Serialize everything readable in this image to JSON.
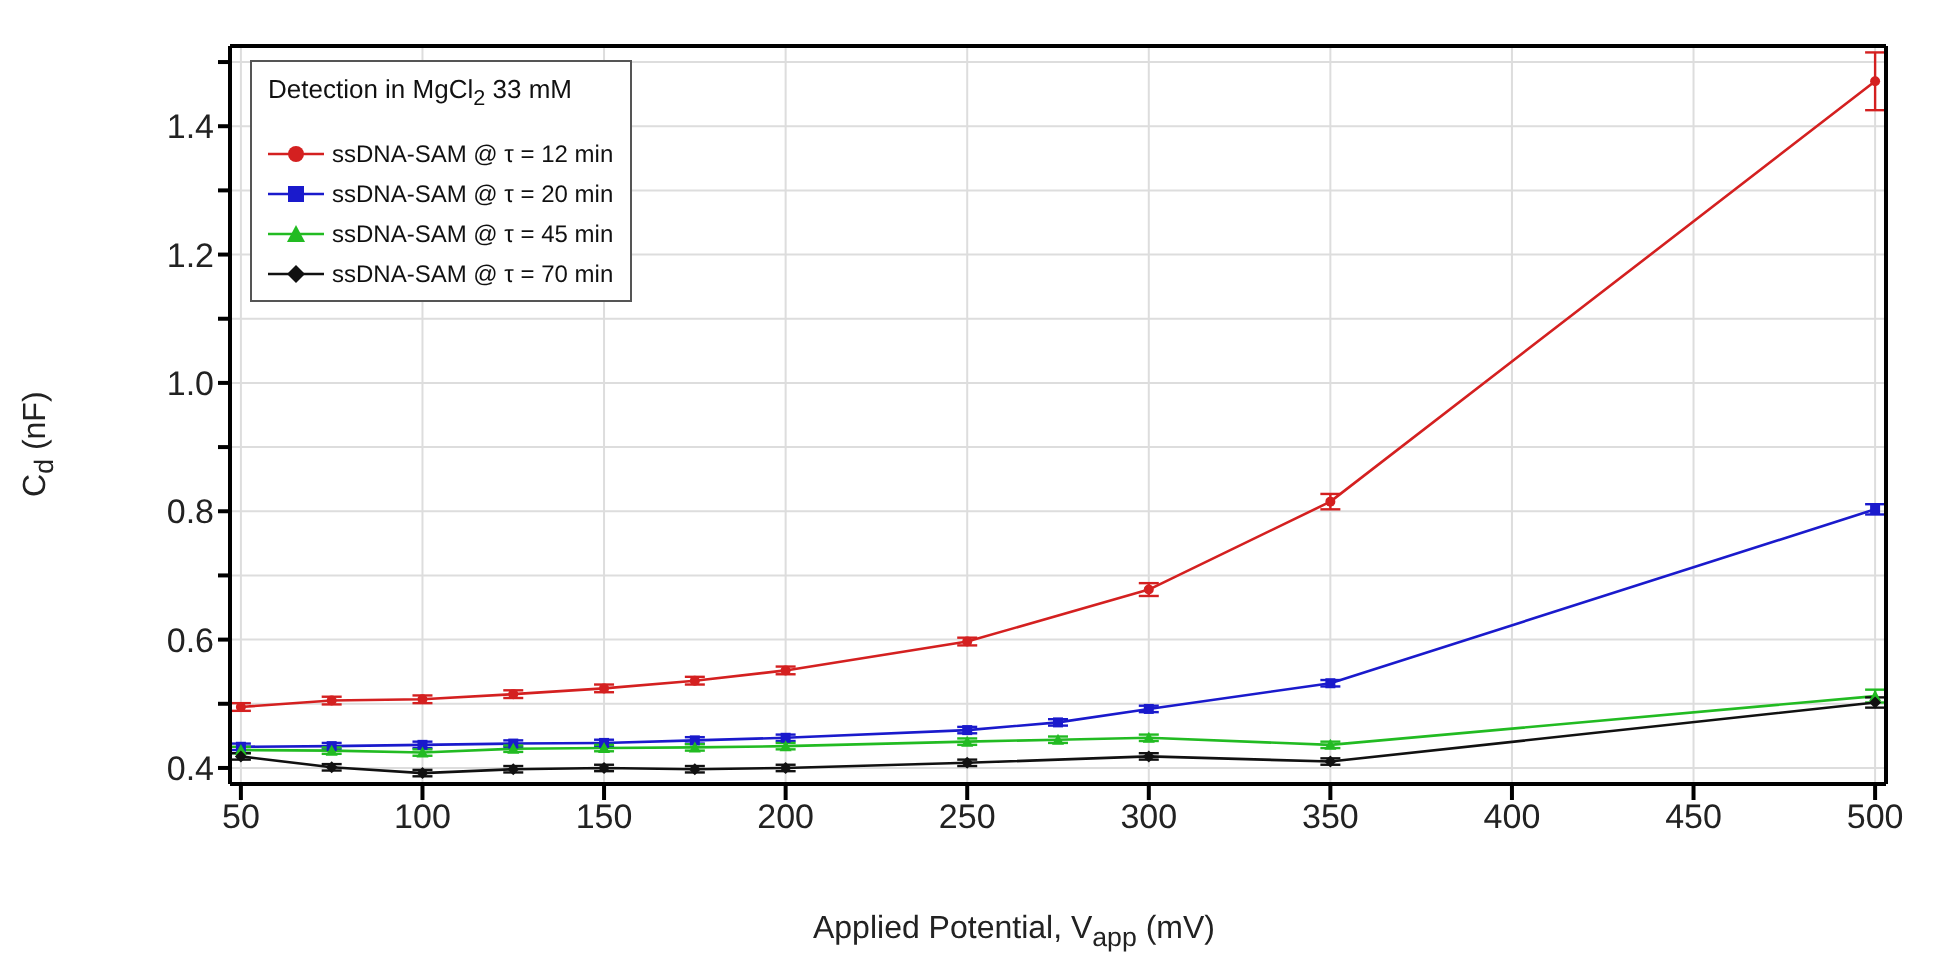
{
  "chart_data": {
    "type": "line",
    "xlabel": "Applied Potential, V$_{app}$ (mV)",
    "ylabel": "C$_{d}$ (nF)",
    "legend_title": "Detection in MgCl$_{2}$ 33 mM",
    "legend": "top left",
    "grid": true,
    "line_style": "solid",
    "xlim": [
      47,
      503
    ],
    "xticks": [
      50,
      100,
      150,
      200,
      250,
      300,
      350,
      400,
      450,
      500
    ],
    "ylim": [
      0.375,
      1.525
    ],
    "yticks": [
      0.4,
      {
        "value": 0.5,
        "label": null
      },
      0.6,
      {
        "value": 0.7,
        "label": null
      },
      0.8,
      {
        "value": 0.9,
        "label": null
      },
      {
        "value": 1.0,
        "label": "1.0"
      },
      {
        "value": 1.1,
        "label": null
      },
      1.2,
      {
        "value": 1.3,
        "label": null
      },
      1.4,
      {
        "value": 1.5,
        "label": null
      }
    ],
    "series": [
      {
        "name": "ssDNA-SAM @ τ = 12 min",
        "color": "#d42020",
        "marker": "circle",
        "x": [
          50,
          75,
          100,
          125,
          150,
          175,
          200,
          250,
          300,
          350,
          500
        ],
        "values": [
          0.495,
          0.505,
          0.507,
          0.515,
          0.524,
          0.536,
          0.552,
          0.597,
          0.678,
          0.815,
          1.47
        ],
        "errors": [
          0.006,
          0.006,
          0.006,
          0.006,
          0.006,
          0.006,
          0.006,
          0.006,
          0.01,
          0.012,
          0.045
        ]
      },
      {
        "name": "ssDNA-SAM @ τ = 20 min",
        "color": "#1a1acc",
        "marker": "square",
        "x": [
          50,
          75,
          100,
          125,
          150,
          175,
          200,
          250,
          275,
          300,
          350,
          500
        ],
        "values": [
          0.433,
          0.434,
          0.436,
          0.438,
          0.439,
          0.443,
          0.447,
          0.459,
          0.471,
          0.492,
          0.532,
          0.803
        ],
        "errors": [
          0.005,
          0.005,
          0.005,
          0.005,
          0.005,
          0.005,
          0.005,
          0.005,
          0.005,
          0.005,
          0.005,
          0.008
        ]
      },
      {
        "name": "ssDNA-SAM @ τ = 45 min",
        "color": "#22bb22",
        "marker": "triangle",
        "x": [
          50,
          75,
          100,
          125,
          150,
          175,
          200,
          250,
          275,
          300,
          350,
          500
        ],
        "values": [
          0.428,
          0.427,
          0.424,
          0.43,
          0.431,
          0.432,
          0.434,
          0.441,
          0.444,
          0.447,
          0.436,
          0.512
        ],
        "errors": [
          0.005,
          0.005,
          0.005,
          0.005,
          0.005,
          0.005,
          0.005,
          0.005,
          0.005,
          0.005,
          0.005,
          0.01
        ]
      },
      {
        "name": "ssDNA-SAM @ τ = 70 min",
        "color": "#111111",
        "marker": "diamond",
        "x": [
          50,
          75,
          100,
          125,
          150,
          175,
          200,
          250,
          300,
          350,
          500
        ],
        "values": [
          0.418,
          0.401,
          0.392,
          0.398,
          0.4,
          0.398,
          0.4,
          0.408,
          0.418,
          0.41,
          0.502
        ],
        "errors": [
          0.005,
          0.005,
          0.005,
          0.005,
          0.005,
          0.005,
          0.005,
          0.005,
          0.005,
          0.005,
          0.008
        ]
      }
    ]
  }
}
